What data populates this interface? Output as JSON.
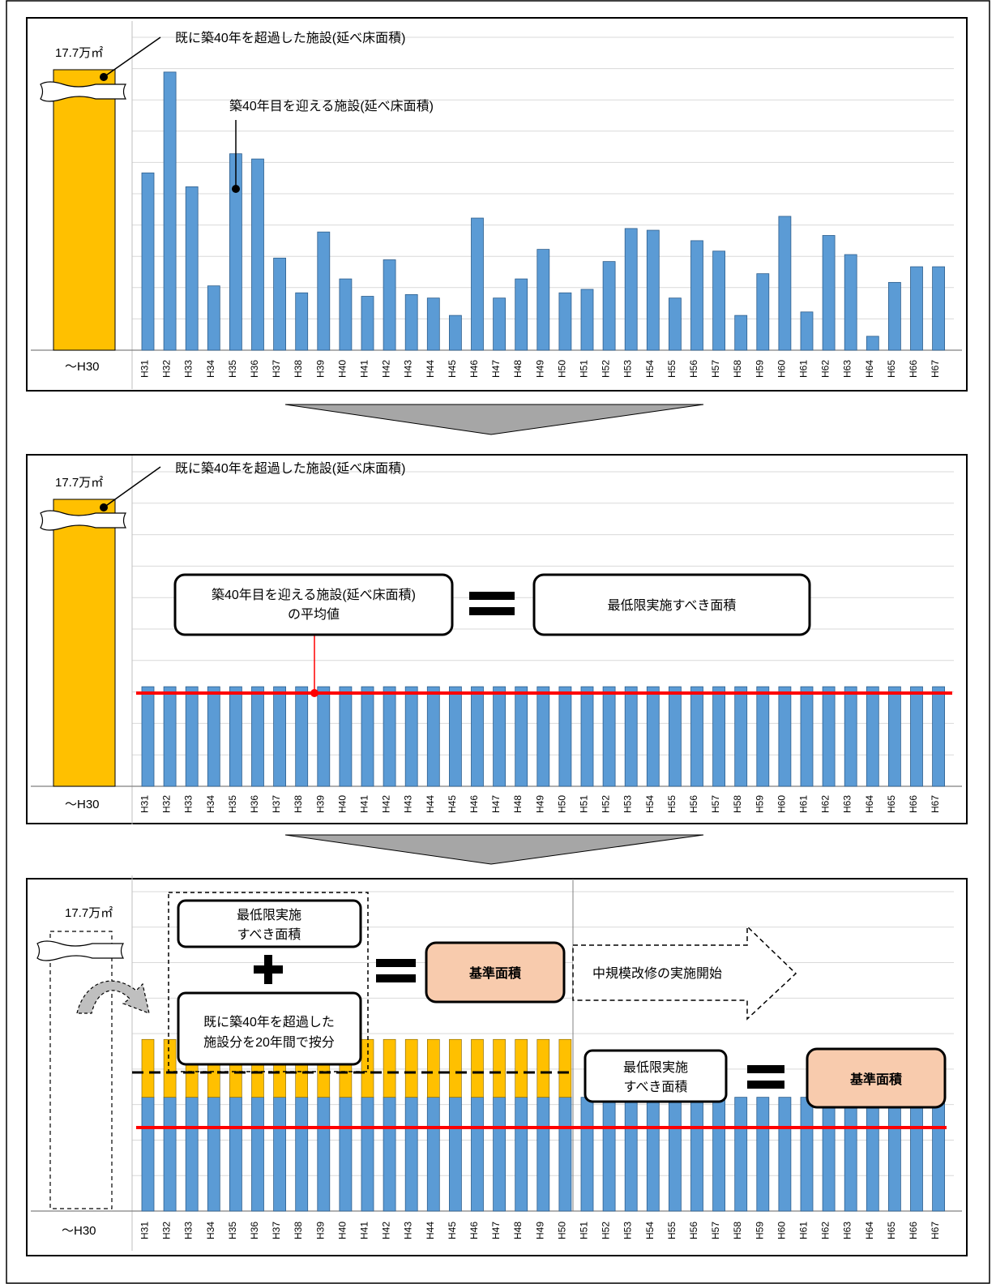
{
  "colors": {
    "bar_blue": "#5B9BD5",
    "bar_blue_stroke": "#2E5E8C",
    "bar_yellow": "#FFC000",
    "average_line": "#FF0000",
    "highlight_box": "#F8CBAD",
    "arrow_gray": "#A6A6A6",
    "gridline": "#D9D9D9"
  },
  "chart_data": [
    {
      "type": "bar",
      "first_bar_label": "〜H30",
      "first_bar_value_label": "17.7万㎡",
      "categories": [
        "H31",
        "H32",
        "H33",
        "H34",
        "H35",
        "H36",
        "H37",
        "H38",
        "H39",
        "H40",
        "H41",
        "H42",
        "H43",
        "H44",
        "H45",
        "H46",
        "H47",
        "H48",
        "H49",
        "H50",
        "H51",
        "H52",
        "H53",
        "H54",
        "H55",
        "H56",
        "H57",
        "H58",
        "H59",
        "H60",
        "H61",
        "H62",
        "H63",
        "H64",
        "H65",
        "H66",
        "H67"
      ],
      "values": [
        5.1,
        8.0,
        4.7,
        1.85,
        5.65,
        5.5,
        2.65,
        1.65,
        3.4,
        2.05,
        1.55,
        2.6,
        1.6,
        1.5,
        1.0,
        3.8,
        1.5,
        2.05,
        2.9,
        1.65,
        1.75,
        2.55,
        3.5,
        3.45,
        1.5,
        3.15,
        2.85,
        1.0,
        2.2,
        3.85,
        1.1,
        3.3,
        2.75,
        0.4,
        1.95,
        2.4,
        2.4
      ],
      "ylim": [
        0,
        9
      ],
      "grid": true,
      "annotations": [
        "既に築40年を超過した施設(延べ床面積)",
        "築40年目を迎える施設(延べ床面積)"
      ]
    },
    {
      "type": "bar",
      "first_bar_label": "〜H30",
      "first_bar_value_label": "17.7万㎡",
      "categories": [
        "H31",
        "H32",
        "H33",
        "H34",
        "H35",
        "H36",
        "H37",
        "H38",
        "H39",
        "H40",
        "H41",
        "H42",
        "H43",
        "H44",
        "H45",
        "H46",
        "H47",
        "H48",
        "H49",
        "H50",
        "H51",
        "H52",
        "H53",
        "H54",
        "H55",
        "H56",
        "H57",
        "H58",
        "H59",
        "H60",
        "H61",
        "H62",
        "H63",
        "H64",
        "H65",
        "H66",
        "H67"
      ],
      "values": [
        2.85,
        2.85,
        2.85,
        2.85,
        2.85,
        2.85,
        2.85,
        2.85,
        2.85,
        2.85,
        2.85,
        2.85,
        2.85,
        2.85,
        2.85,
        2.85,
        2.85,
        2.85,
        2.85,
        2.85,
        2.85,
        2.85,
        2.85,
        2.85,
        2.85,
        2.85,
        2.85,
        2.85,
        2.85,
        2.85,
        2.85,
        2.85,
        2.85,
        2.85,
        2.85,
        2.85,
        2.85
      ],
      "ylim": [
        0,
        9
      ],
      "grid": true,
      "annotations": [
        "既に築40年を超過した施設(延べ床面積)"
      ],
      "average_label_line1": "築40年目を迎える施設(延べ床面積)",
      "average_label_line2": "の平均値",
      "equals_target": "最低限実施すべき面積"
    },
    {
      "type": "bar",
      "first_bar_label": "〜H30",
      "first_bar_value_label": "17.7万㎡",
      "categories": [
        "H31",
        "H32",
        "H33",
        "H34",
        "H35",
        "H36",
        "H37",
        "H38",
        "H39",
        "H40",
        "H41",
        "H42",
        "H43",
        "H44",
        "H45",
        "H46",
        "H47",
        "H48",
        "H49",
        "H50",
        "H51",
        "H52",
        "H53",
        "H54",
        "H55",
        "H56",
        "H57",
        "H58",
        "H59",
        "H60",
        "H61",
        "H62",
        "H63",
        "H64",
        "H65",
        "H66",
        "H67"
      ],
      "series": [
        {
          "values": [
            2.85,
            2.85,
            2.85,
            2.85,
            2.85,
            2.85,
            2.85,
            2.85,
            2.85,
            2.85,
            2.85,
            2.85,
            2.85,
            2.85,
            2.85,
            2.85,
            2.85,
            2.85,
            2.85,
            2.85,
            2.85,
            2.85,
            2.85,
            2.85,
            2.85,
            2.85,
            2.85,
            2.85,
            2.85,
            2.85,
            2.85,
            2.85,
            2.85,
            2.85,
            2.85,
            2.85,
            2.85
          ]
        },
        {
          "values": [
            1.45,
            1.45,
            1.45,
            1.45,
            1.45,
            1.45,
            1.45,
            1.45,
            1.45,
            1.45,
            1.45,
            1.45,
            1.45,
            1.45,
            1.45,
            1.45,
            1.45,
            1.45,
            1.45,
            1.45,
            0,
            0,
            0,
            0,
            0,
            0,
            0,
            0,
            0,
            0,
            0,
            0,
            0,
            0,
            0,
            0,
            0
          ]
        }
      ],
      "ylim": [
        0,
        8
      ],
      "grid": true,
      "box_min_area_line1": "最低限実施",
      "box_min_area_line2": "すべき面積",
      "box_excess_line1": "既に築40年を超過した",
      "box_excess_line2": "施設分を20年間で按分",
      "standard_area": "基準面積",
      "mid_scale_start": "中規模改修の実施開始"
    }
  ]
}
